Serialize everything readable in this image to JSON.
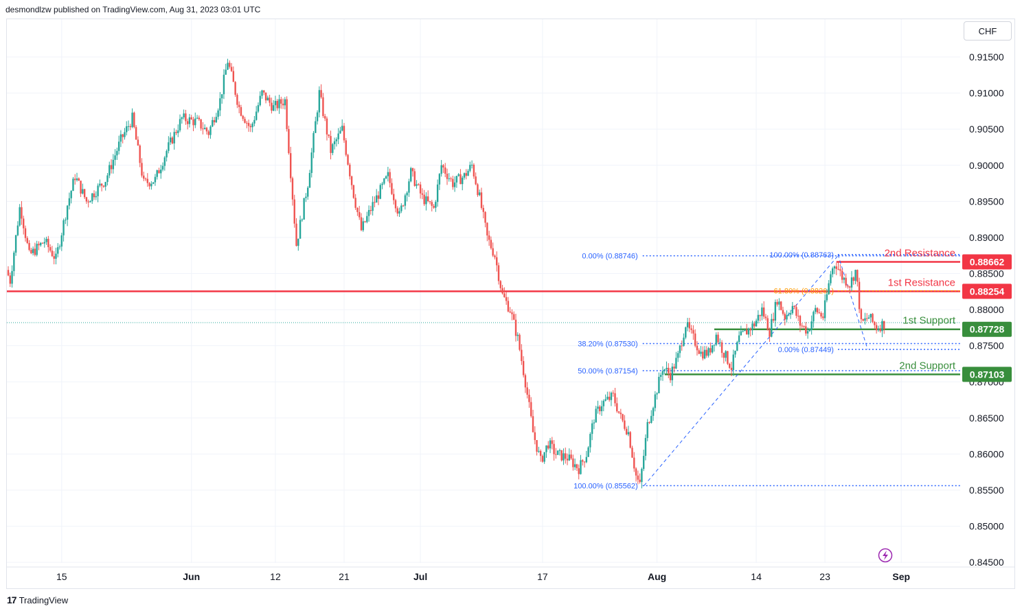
{
  "header": {
    "text": "desmondlzw published on TradingView.com, Aug 31, 2023 03:01 UTC"
  },
  "footer": {
    "logo": "17",
    "brand": "TradingView"
  },
  "currency": "CHF",
  "colors": {
    "up": "#26a69a",
    "down": "#ef5350",
    "resistance": "#f23645",
    "support": "#388e3c",
    "fib": "#2962ff",
    "fib_orange": "#ff9800",
    "grid": "#f0f3fa",
    "text": "#131722",
    "axis_text": "#131722"
  },
  "icons": {
    "replay": "lightning-circle-icon"
  },
  "chart_data": {
    "type": "candlestick",
    "symbol_currency": "CHF",
    "ylim": [
      0.845,
      0.919
    ],
    "y_ticks": [
      "0.91500",
      "0.91000",
      "0.90500",
      "0.90000",
      "0.89500",
      "0.89000",
      "0.88500",
      "0.88000",
      "0.87500",
      "0.87000",
      "0.86500",
      "0.86000",
      "0.85500",
      "0.85000",
      "0.84500"
    ],
    "y_tick_values": [
      0.915,
      0.91,
      0.905,
      0.9,
      0.895,
      0.89,
      0.885,
      0.88,
      0.875,
      0.87,
      0.865,
      0.86,
      0.855,
      0.85,
      0.845
    ],
    "x_range_days": [
      0,
      115
    ],
    "x_ticks": [
      {
        "label": "15",
        "day": 7,
        "bold": false
      },
      {
        "label": "Jun",
        "day": 24,
        "bold": true
      },
      {
        "label": "12",
        "day": 35,
        "bold": false
      },
      {
        "label": "21",
        "day": 44,
        "bold": false
      },
      {
        "label": "Jul",
        "day": 54,
        "bold": true
      },
      {
        "label": "17",
        "day": 70,
        "bold": false
      },
      {
        "label": "Aug",
        "day": 85,
        "bold": true
      },
      {
        "label": "14",
        "day": 98,
        "bold": false
      },
      {
        "label": "23",
        "day": 107,
        "bold": false
      },
      {
        "label": "Sep",
        "day": 117,
        "bold": true
      }
    ],
    "price_path": [
      [
        0,
        0.8855
      ],
      [
        0.5,
        0.884
      ],
      [
        1.8,
        0.8945
      ],
      [
        3,
        0.8875
      ],
      [
        5,
        0.8895
      ],
      [
        6.5,
        0.887
      ],
      [
        8,
        0.8945
      ],
      [
        9,
        0.8985
      ],
      [
        10.5,
        0.895
      ],
      [
        13,
        0.898
      ],
      [
        15,
        0.9035
      ],
      [
        16.5,
        0.9065
      ],
      [
        18,
        0.8975
      ],
      [
        19.5,
        0.898
      ],
      [
        21,
        0.902
      ],
      [
        23,
        0.9065
      ],
      [
        25,
        0.906
      ],
      [
        26.5,
        0.9045
      ],
      [
        28,
        0.909
      ],
      [
        29,
        0.9145
      ],
      [
        30.5,
        0.908
      ],
      [
        32,
        0.905
      ],
      [
        33.5,
        0.91
      ],
      [
        35,
        0.908
      ],
      [
        36.5,
        0.909
      ],
      [
        38,
        0.889
      ],
      [
        39.5,
        0.8975
      ],
      [
        41,
        0.91
      ],
      [
        42.5,
        0.902
      ],
      [
        44,
        0.905
      ],
      [
        45.5,
        0.896
      ],
      [
        46.5,
        0.891
      ],
      [
        48,
        0.8945
      ],
      [
        50,
        0.8985
      ],
      [
        51.5,
        0.893
      ],
      [
        53,
        0.899
      ],
      [
        54.5,
        0.8955
      ],
      [
        56,
        0.894
      ],
      [
        57,
        0.9
      ],
      [
        58.5,
        0.8975
      ],
      [
        60,
        0.8985
      ],
      [
        61,
        0.9
      ],
      [
        62,
        0.8955
      ],
      [
        63,
        0.89
      ],
      [
        64,
        0.8875
      ],
      [
        65,
        0.882
      ],
      [
        66,
        0.88
      ],
      [
        67,
        0.876
      ],
      [
        68,
        0.87
      ],
      [
        69,
        0.863
      ],
      [
        70,
        0.859
      ],
      [
        71,
        0.8615
      ],
      [
        72,
        0.86
      ],
      [
        73.5,
        0.8595
      ],
      [
        75,
        0.858
      ],
      [
        76,
        0.86
      ],
      [
        77,
        0.865
      ],
      [
        78,
        0.867
      ],
      [
        79.5,
        0.868
      ],
      [
        80.5,
        0.865
      ],
      [
        81.5,
        0.863
      ],
      [
        82.5,
        0.857
      ],
      [
        83,
        0.8556
      ],
      [
        84,
        0.864
      ],
      [
        85,
        0.868
      ],
      [
        86,
        0.872
      ],
      [
        87,
        0.871
      ],
      [
        88,
        0.8735
      ],
      [
        89,
        0.878
      ],
      [
        90,
        0.876
      ],
      [
        91,
        0.874
      ],
      [
        92,
        0.874
      ],
      [
        93,
        0.8765
      ],
      [
        94,
        0.874
      ],
      [
        95,
        0.872
      ],
      [
        96,
        0.876
      ],
      [
        97,
        0.877
      ],
      [
        98,
        0.878
      ],
      [
        99,
        0.88
      ],
      [
        100,
        0.877
      ],
      [
        101,
        0.8815
      ],
      [
        102,
        0.879
      ],
      [
        103,
        0.8805
      ],
      [
        104,
        0.878
      ],
      [
        105,
        0.877
      ],
      [
        106,
        0.88
      ],
      [
        107,
        0.879
      ],
      [
        108,
        0.885
      ],
      [
        108.6,
        0.8866
      ],
      [
        109.5,
        0.8845
      ],
      [
        110.5,
        0.8835
      ],
      [
        111.3,
        0.8855
      ],
      [
        112,
        0.878
      ],
      [
        113,
        0.879
      ],
      [
        114,
        0.8775
      ],
      [
        114.8,
        0.878
      ]
    ],
    "horizontal_levels": [
      {
        "label": "1st Resistance",
        "price": 0.88254,
        "price_label": "0.88254",
        "color": "resistance",
        "x_start_day": 0
      },
      {
        "label": "2nd Resistance",
        "price": 0.88662,
        "price_label": "0.88662",
        "color": "resistance",
        "x_start_day": 108.5
      },
      {
        "label": "1st Support",
        "price": 0.87728,
        "price_label": "0.87728",
        "color": "support",
        "x_start_day": 92.5
      },
      {
        "label": "2nd Support",
        "price": 0.87103,
        "price_label": "0.87103",
        "color": "support",
        "x_start_day": 86
      }
    ],
    "current_price": 0.8782,
    "fib_long": {
      "from": {
        "day": 83.3,
        "price": 0.85562
      },
      "to": {
        "day": 108.7,
        "price": 0.88746
      },
      "levels": [
        {
          "label": "0.00% (0.88746)",
          "price": 0.88746
        },
        {
          "label": "38.20% (0.87530)",
          "price": 0.8753
        },
        {
          "label": "50.00% (0.87154)",
          "price": 0.87154
        },
        {
          "label": "100.00% (0.85562)",
          "price": 0.85562
        }
      ]
    },
    "fib_short": {
      "from": {
        "day": 108.7,
        "price": 0.88763
      },
      "to": {
        "day": 112.6,
        "price": 0.87449
      },
      "levels": [
        {
          "label": "100.00% (0.88763)",
          "price": 0.88763,
          "color": "fib"
        },
        {
          "label": "61.80% (0.88261)",
          "price": 0.88261,
          "color": "fib_orange"
        },
        {
          "label": "0.00% (0.87449)",
          "price": 0.87449,
          "color": "fib"
        }
      ]
    }
  }
}
